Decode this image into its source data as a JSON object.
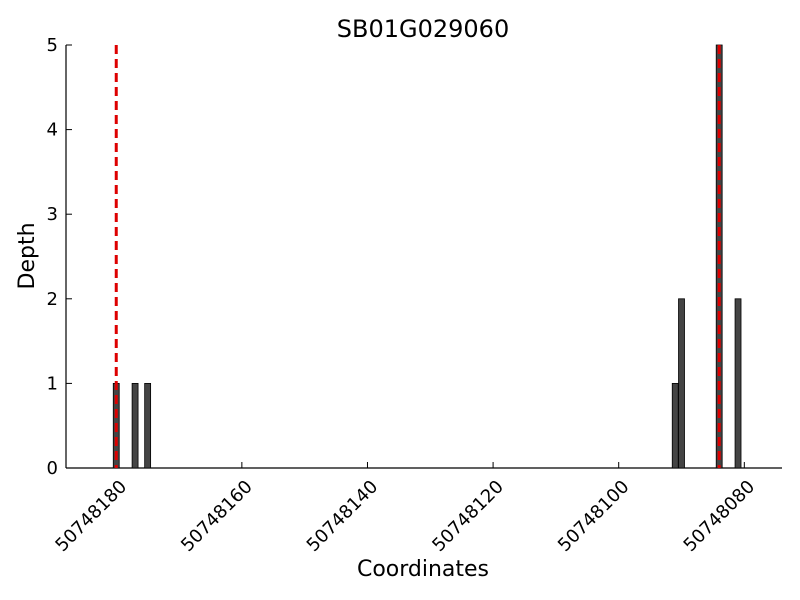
{
  "chart_data": {
    "type": "bar",
    "title": "SB01G029060",
    "xlabel": "Coordinates",
    "ylabel": "Depth",
    "x_reversed": true,
    "xlim": [
      50748188,
      50748074
    ],
    "ylim": [
      0,
      5
    ],
    "x_ticks": [
      50748180,
      50748160,
      50748140,
      50748120,
      50748100,
      50748080
    ],
    "y_ticks": [
      0,
      1,
      2,
      3,
      4,
      5
    ],
    "bars": [
      {
        "x": 50748180,
        "value": 1
      },
      {
        "x": 50748177,
        "value": 1
      },
      {
        "x": 50748175,
        "value": 1
      },
      {
        "x": 50748091,
        "value": 1
      },
      {
        "x": 50748090,
        "value": 2
      },
      {
        "x": 50748084,
        "value": 5
      },
      {
        "x": 50748081,
        "value": 2
      }
    ],
    "markers": [
      50748180,
      50748084
    ],
    "bar_color": "#444444",
    "marker_color": "#dd0000",
    "grid": false
  }
}
